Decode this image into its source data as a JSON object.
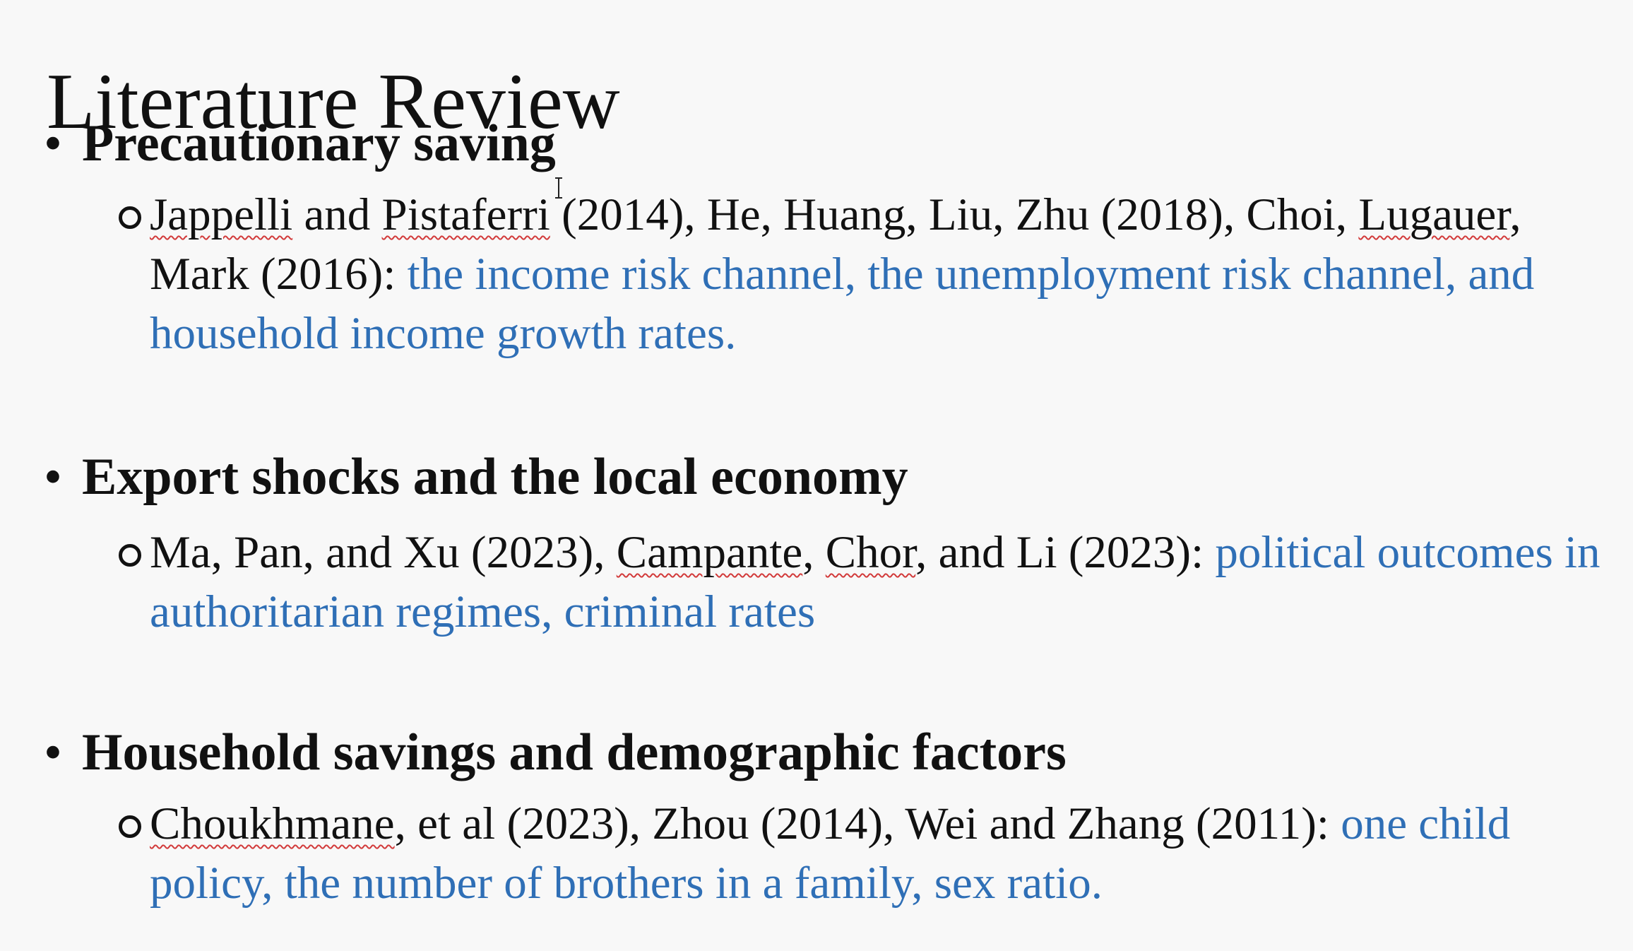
{
  "title": "Literature Review",
  "sections": [
    {
      "heading": "Precautionary saving",
      "citations": {
        "p1": "Jappelli",
        "p2": " and ",
        "p3": "Pistaferri",
        "p4": " (2014), He, Huang, Liu, Zhu (2018), Choi, ",
        "p5": "Lugauer",
        "p6": ", Mark (2016): "
      },
      "findings": "the income risk channel, the unemployment risk channel, and household income growth rates."
    },
    {
      "heading": "Export shocks and the local economy",
      "citations": {
        "p1": "Ma, Pan, and Xu (2023), ",
        "p2": "Campante",
        "p3": ", ",
        "p4": "Chor",
        "p5": ", and Li (2023): "
      },
      "findings": "political outcomes in authoritarian regimes, criminal rates"
    },
    {
      "heading": "Household savings and demographic factors",
      "citations": {
        "p1": "Choukhmane",
        "p2": ", et al (2023), Zhou (2014), Wei and Zhang (2011): "
      },
      "findings": "one child policy, the number of brothers in a family, sex ratio."
    }
  ],
  "colors": {
    "highlight": "#2f6fb6",
    "text": "#111111",
    "background": "#f8f8f8",
    "spellcheck_underline": "#d23a3a"
  },
  "icons": {
    "cursor": "text-cursor-icon"
  }
}
